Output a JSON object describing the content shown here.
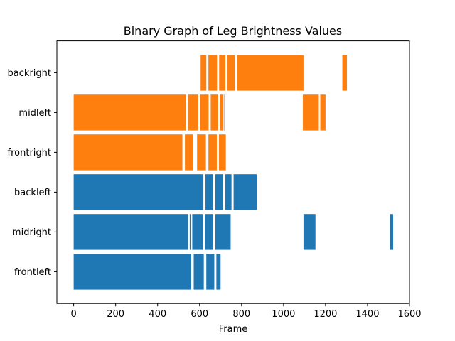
{
  "chart_data": {
    "type": "bar",
    "orientation": "horizontal",
    "title": "Binary Graph of Leg Brightness Values",
    "xlabel": "Frame",
    "ylabel": "",
    "xlim": [
      -80,
      1600
    ],
    "xticks": [
      0,
      200,
      400,
      600,
      800,
      1000,
      1200,
      1400,
      1600
    ],
    "grid": false,
    "colors": {
      "blue": "#1f77b4",
      "orange": "#ff7f0e"
    },
    "categories": [
      "frontleft",
      "midright",
      "backleft",
      "frontright",
      "midleft",
      "backright"
    ],
    "rows": [
      {
        "name": "frontleft",
        "color": "blue",
        "segments": [
          [
            0,
            560
          ],
          [
            572,
            620
          ],
          [
            632,
            670
          ],
          [
            680,
            700
          ]
        ]
      },
      {
        "name": "midright",
        "color": "blue",
        "segments": [
          [
            0,
            545
          ],
          [
            553,
            558
          ],
          [
            565,
            615
          ],
          [
            625,
            665
          ],
          [
            675,
            748
          ],
          [
            1095,
            1152
          ],
          [
            1507,
            1522
          ]
        ]
      },
      {
        "name": "backleft",
        "color": "blue",
        "segments": [
          [
            0,
            618
          ],
          [
            628,
            665
          ],
          [
            675,
            712
          ],
          [
            722,
            752
          ],
          [
            762,
            872
          ]
        ]
      },
      {
        "name": "frontright",
        "color": "orange",
        "segments": [
          [
            0,
            518
          ],
          [
            530,
            570
          ],
          [
            588,
            630
          ],
          [
            642,
            682
          ],
          [
            692,
            725
          ]
        ]
      },
      {
        "name": "midleft",
        "color": "orange",
        "segments": [
          [
            0,
            535
          ],
          [
            545,
            593
          ],
          [
            603,
            643
          ],
          [
            653,
            688
          ],
          [
            697,
            712
          ],
          [
            715,
            718
          ],
          [
            1092,
            1168
          ],
          [
            1175,
            1200
          ]
        ]
      },
      {
        "name": "backright",
        "color": "orange",
        "segments": [
          [
            605,
            632
          ],
          [
            642,
            683
          ],
          [
            693,
            723
          ],
          [
            733,
            768
          ],
          [
            778,
            1095
          ],
          [
            1280,
            1302
          ]
        ]
      }
    ]
  }
}
